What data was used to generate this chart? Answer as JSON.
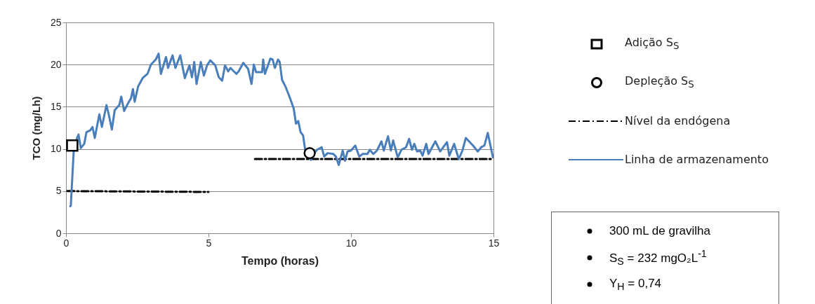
{
  "chart_data": {
    "type": "line",
    "xlabel": "Tempo (horas)",
    "ylabel": "TCO (mg/Lh)",
    "xlim": [
      0,
      15
    ],
    "xticks": [
      0,
      5,
      10,
      15
    ],
    "ylim": [
      0,
      25
    ],
    "yticks": [
      0,
      5,
      10,
      15,
      20,
      25
    ],
    "grid": "y",
    "legend": "right",
    "series": [
      {
        "name": "Adição S$_{S}$",
        "type": "scatter",
        "marker": "square",
        "color": "#000000",
        "x": [
          0.22
        ],
        "values": [
          10.4
        ]
      },
      {
        "name": "Depleção S$_{S}$",
        "type": "scatter",
        "marker": "circle",
        "color": "#000000",
        "x": [
          8.55
        ],
        "values": [
          9.5
        ]
      },
      {
        "name": "Nível da endógena",
        "line_style": "dashed",
        "color": "#000000",
        "x": [
          0.05,
          5.0,
          5.8,
          6.63,
          15.0
        ],
        "values": [
          5.0,
          4.9,
          null,
          8.8,
          8.8
        ]
      },
      {
        "name": "Linha de armazenamento",
        "color": "#4a7ebb",
        "line_style": "solid",
        "x": [
          0.15,
          0.17,
          0.27,
          0.35,
          0.44,
          0.52,
          0.64,
          0.72,
          0.85,
          0.93,
          1.01,
          1.17,
          1.26,
          1.42,
          1.5,
          1.61,
          1.71,
          1.87,
          1.94,
          2.04,
          2.16,
          2.28,
          2.35,
          2.41,
          2.53,
          2.69,
          2.86,
          2.98,
          3.15,
          3.25,
          3.33,
          3.51,
          3.58,
          3.74,
          3.84,
          4.01,
          4.17,
          4.33,
          4.42,
          4.5,
          4.58,
          4.73,
          4.84,
          4.95,
          5.06,
          5.24,
          5.36,
          5.48,
          5.58,
          5.69,
          5.77,
          5.98,
          6.06,
          6.22,
          6.39,
          6.51,
          6.59,
          6.67,
          6.88,
          6.92,
          6.98,
          7.17,
          7.25,
          7.33,
          7.44,
          7.5,
          7.58,
          7.7,
          7.83,
          7.99,
          8.07,
          8.15,
          8.23,
          8.32,
          8.4,
          8.48,
          8.59,
          8.69,
          8.81,
          8.97,
          9.06,
          9.18,
          9.38,
          9.47,
          9.57,
          9.71,
          9.79,
          9.88,
          10.0,
          10.15,
          10.29,
          10.41,
          10.58,
          10.66,
          10.78,
          10.91,
          11.07,
          11.15,
          11.3,
          11.4,
          11.48,
          11.64,
          11.77,
          11.93,
          12.04,
          12.14,
          12.22,
          12.32,
          12.43,
          12.51,
          12.64,
          12.72,
          12.96,
          13.13,
          13.37,
          13.45,
          13.62,
          13.78,
          13.91,
          14.03,
          14.28,
          14.45,
          14.57,
          14.68,
          14.8,
          14.98
        ],
        "values": [
          3.2,
          3.3,
          9.7,
          11.0,
          11.7,
          10.1,
          10.6,
          12.0,
          12.2,
          12.6,
          11.3,
          14.1,
          12.6,
          15.2,
          14.1,
          12.3,
          14.6,
          15.2,
          16.2,
          14.5,
          15.3,
          16.0,
          17.1,
          15.6,
          17.4,
          18.4,
          18.9,
          20.0,
          20.6,
          21.3,
          18.9,
          20.9,
          19.6,
          21.1,
          19.6,
          21.1,
          18.4,
          19.9,
          18.5,
          20.3,
          17.7,
          20.3,
          18.7,
          19.9,
          20.5,
          19.9,
          18.5,
          18.1,
          19.9,
          19.2,
          19.6,
          18.9,
          19.2,
          20.2,
          19.5,
          17.7,
          20.0,
          19.1,
          19.1,
          20.6,
          18.9,
          20.7,
          20.6,
          19.6,
          20.6,
          20.3,
          18.2,
          17.4,
          16.3,
          14.8,
          13.0,
          13.3,
          12.0,
          11.6,
          9.7,
          9.4,
          8.7,
          9.4,
          9.9,
          10.2,
          9.1,
          9.5,
          9.4,
          9.1,
          8.1,
          9.8,
          8.6,
          9.7,
          9.8,
          10.4,
          9.1,
          9.4,
          9.4,
          9.9,
          9.4,
          9.8,
          10.9,
          9.8,
          11.5,
          9.8,
          11.0,
          9.0,
          9.9,
          10.2,
          11.2,
          9.9,
          10.6,
          9.7,
          9.8,
          9.2,
          10.6,
          9.4,
          10.9,
          9.7,
          10.8,
          9.2,
          10.6,
          8.8,
          9.8,
          11.3,
          10.4,
          9.7,
          10.2,
          10.4,
          11.9,
          9.0
        ]
      }
    ],
    "annotations": [
      "300 mL de gravilha",
      "S$_{S}$ = 232 mgO₂L$^{-1}$",
      "Y$_{H}$ = 0,74"
    ]
  }
}
